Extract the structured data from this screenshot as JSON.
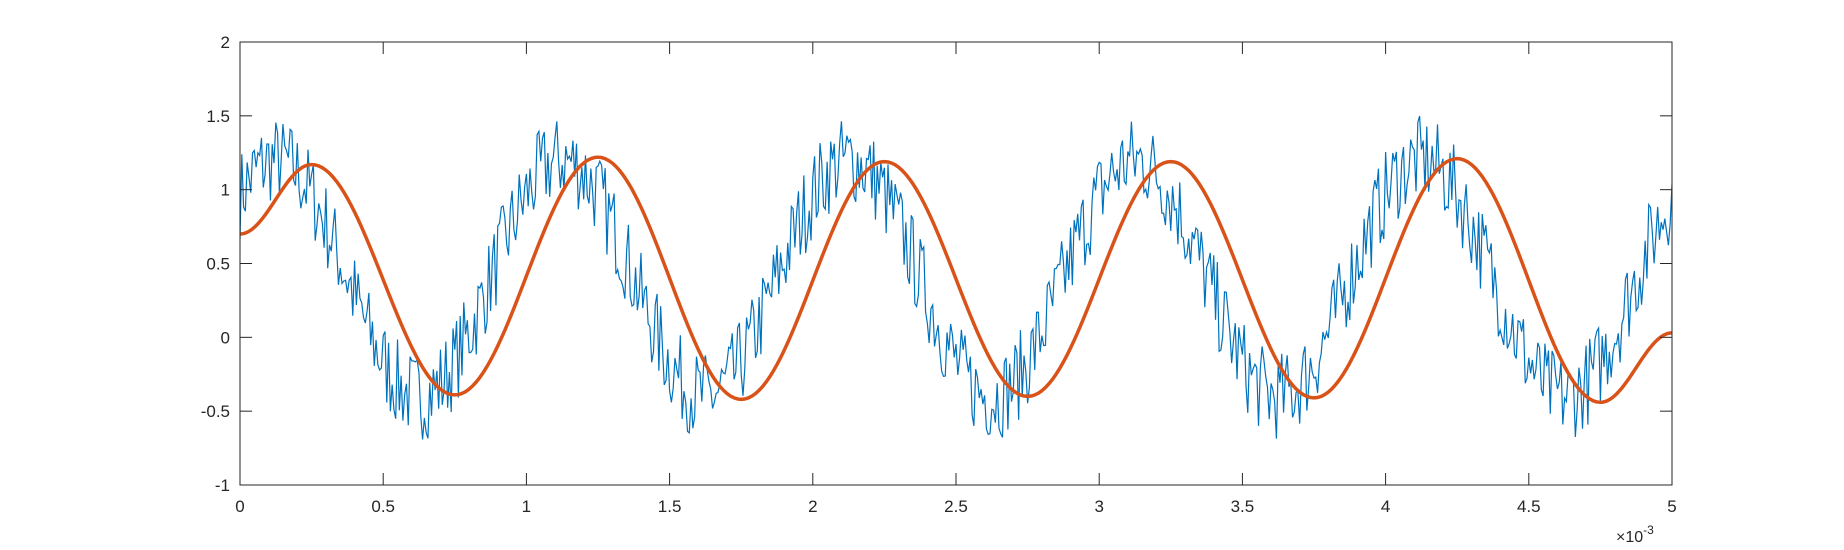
{
  "chart_data": {
    "type": "line",
    "title": "",
    "xlabel": "",
    "ylabel": "",
    "x_exponent_label": {
      "times": "×10",
      "power": "-3"
    },
    "xlim": [
      0,
      0.005
    ],
    "ylim": [
      -1,
      2
    ],
    "x_ticks": [
      0,
      0.5,
      1,
      1.5,
      2,
      2.5,
      3,
      3.5,
      4,
      4.5,
      5
    ],
    "x_tick_labels": [
      "0",
      "0.5",
      "1",
      "1.5",
      "2",
      "2.5",
      "3",
      "3.5",
      "4",
      "4.5",
      "5"
    ],
    "y_ticks": [
      -1,
      -0.5,
      0,
      0.5,
      1,
      1.5,
      2
    ],
    "y_tick_labels": [
      "-1",
      "-0.5",
      "0",
      "0.5",
      "1",
      "1.5",
      "2"
    ],
    "grid": false,
    "legend": "none",
    "series": [
      {
        "kind": "noisy-sine",
        "color": "#0072BD",
        "mean": 0.4,
        "amplitude": 0.8,
        "frequency_hz": 1000,
        "phase": 0.785,
        "noise_amplitude": 0.3,
        "samples": 800
      },
      {
        "kind": "smoothed-sine",
        "color": "#D95319",
        "points": [
          [
            0,
            0.7
          ],
          [
            0.00025,
            1.17
          ],
          [
            0.00075,
            -0.39
          ],
          [
            0.00125,
            1.22
          ],
          [
            0.00175,
            -0.42
          ],
          [
            0.00225,
            1.19
          ],
          [
            0.00275,
            -0.4
          ],
          [
            0.00325,
            1.19
          ],
          [
            0.00375,
            -0.41
          ],
          [
            0.00425,
            1.21
          ],
          [
            0.00475,
            -0.44
          ],
          [
            0.005,
            0.03
          ]
        ]
      }
    ]
  }
}
